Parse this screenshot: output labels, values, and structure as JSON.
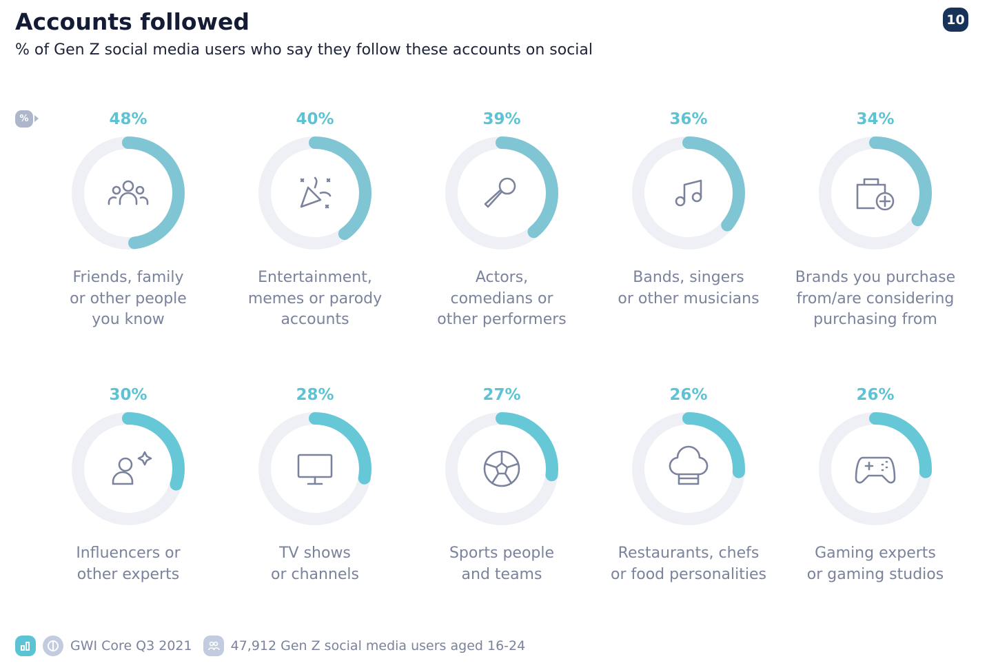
{
  "header": {
    "title": "Accounts followed",
    "subtitle": "% of Gen Z social media users who say they follow these accounts on social",
    "page_number": "10",
    "percent_toggle": "%"
  },
  "chart_data": {
    "type": "donut",
    "title": "Accounts followed",
    "subtitle": "% of Gen Z social media users who say they follow these accounts on social",
    "unit": "%",
    "range": [
      0,
      100
    ],
    "colors": {
      "row1": "#80c5d3",
      "row2": "#66c7d7",
      "track": "#eff0f5"
    },
    "items": [
      {
        "label": "Friends, family\nor other people\nyou know",
        "value": 48,
        "display": "48%",
        "icon": "people-icon"
      },
      {
        "label": "Entertainment,\nmemes or parody\naccounts",
        "value": 40,
        "display": "40%",
        "icon": "party-popper-icon"
      },
      {
        "label": "Actors,\ncomedians or\nother performers",
        "value": 39,
        "display": "39%",
        "icon": "microphone-icon"
      },
      {
        "label": "Bands, singers\nor other musicians",
        "value": 36,
        "display": "36%",
        "icon": "music-note-icon"
      },
      {
        "label": "Brands you purchase\nfrom/are considering\npurchasing from",
        "value": 34,
        "display": "34%",
        "icon": "shopping-bag-add-icon"
      },
      {
        "label": "Influencers or\nother experts",
        "value": 30,
        "display": "30%",
        "icon": "user-sparkle-icon"
      },
      {
        "label": "TV shows\nor channels",
        "value": 28,
        "display": "28%",
        "icon": "monitor-icon"
      },
      {
        "label": "Sports people\nand teams",
        "value": 27,
        "display": "27%",
        "icon": "soccer-ball-icon"
      },
      {
        "label": "Restaurants, chefs\nor food personalities",
        "value": 26,
        "display": "26%",
        "icon": "chef-hat-icon"
      },
      {
        "label": "Gaming experts\nor gaming studios",
        "value": 26,
        "display": "26%",
        "icon": "gamepad-icon"
      }
    ]
  },
  "footer": {
    "source": "GWI Core Q3 2021",
    "sample": "47,912 Gen Z social media users aged 16-24"
  }
}
